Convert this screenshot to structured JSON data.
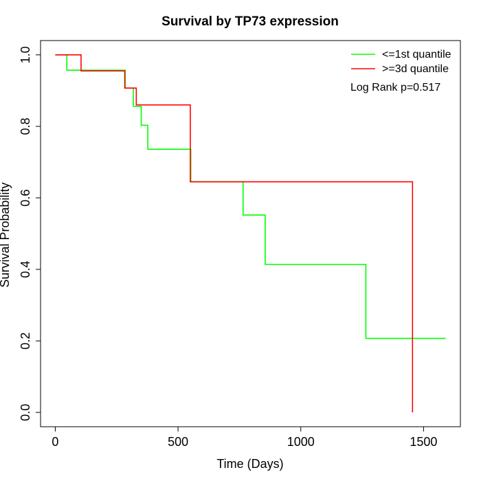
{
  "chart_data": {
    "type": "line",
    "title": "Survival by TP73 expression",
    "xlabel": "Time (Days)",
    "ylabel": "Survival Probability",
    "xlim": [
      -60,
      1650
    ],
    "ylim": [
      -0.04,
      1.04
    ],
    "x_ticks": [
      0,
      500,
      1000,
      1500
    ],
    "y_ticks": [
      0.0,
      0.2,
      0.4,
      0.6,
      0.8,
      1.0
    ],
    "x_tick_labels": [
      "0",
      "500",
      "1000",
      "1500"
    ],
    "y_tick_labels": [
      "0.0",
      "0.2",
      "0.4",
      "0.6",
      "0.8",
      "1.0"
    ],
    "grid": false,
    "legend_position": "top-right",
    "annotation": "Log Rank p=0.517",
    "series": [
      {
        "name": "<=1st quantile",
        "color": "#00ff00",
        "step": [
          [
            0,
            1.0
          ],
          [
            47,
            0.957
          ],
          [
            285,
            0.907
          ],
          [
            318,
            0.856
          ],
          [
            350,
            0.803
          ],
          [
            377,
            0.736
          ],
          [
            552,
            0.645
          ],
          [
            765,
            0.552
          ],
          [
            855,
            0.414
          ],
          [
            1265,
            0.207
          ],
          [
            1590,
            0.207
          ]
        ]
      },
      {
        "name": ">=3d quantile",
        "color": "#ff0000",
        "step": [
          [
            0,
            1.0
          ],
          [
            105,
            0.955
          ],
          [
            283,
            0.907
          ],
          [
            330,
            0.86
          ],
          [
            550,
            0.645
          ],
          [
            1455,
            0.0
          ]
        ]
      }
    ]
  }
}
